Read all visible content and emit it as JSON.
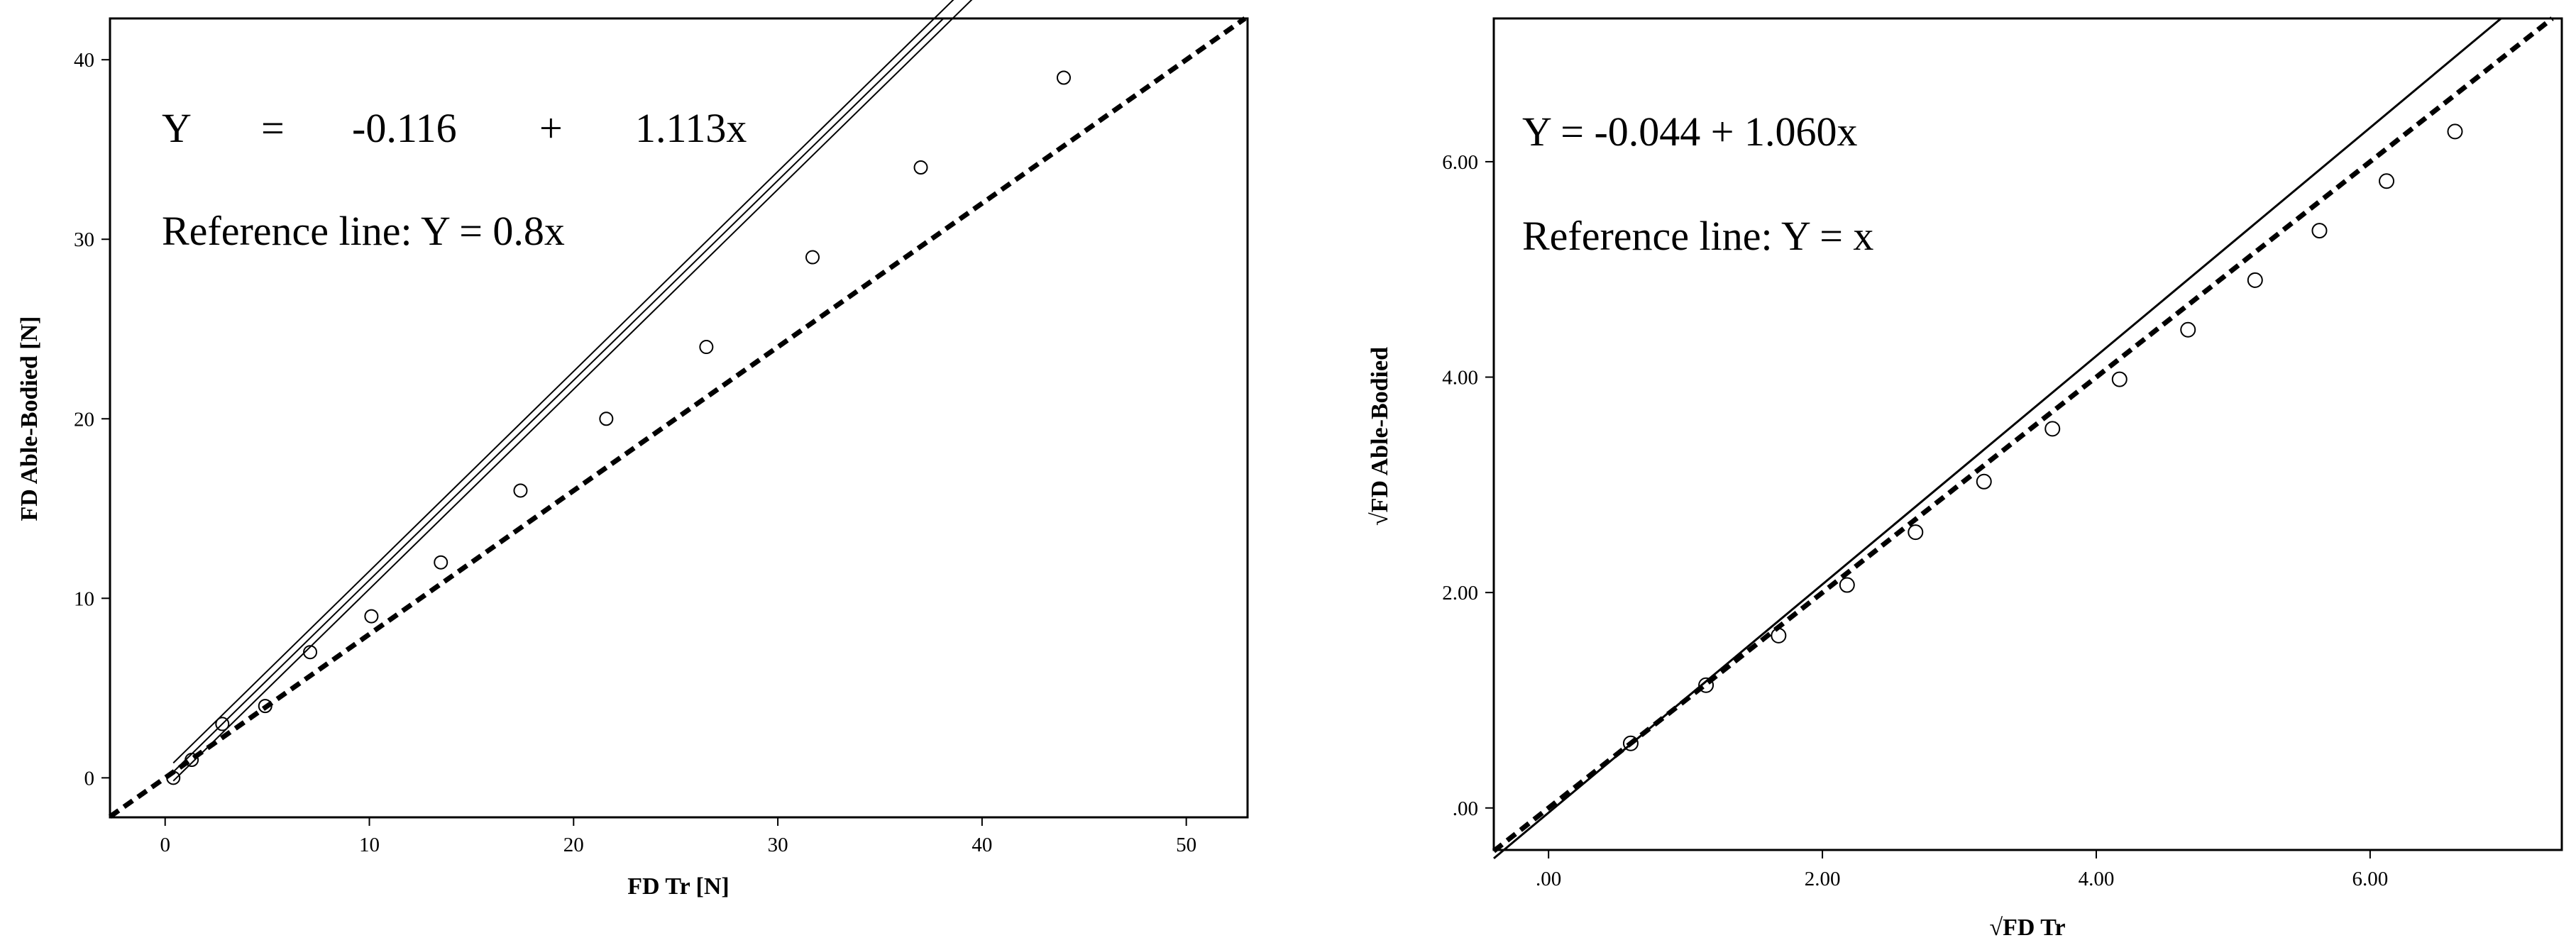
{
  "chart_data": [
    {
      "type": "scatter",
      "title": "",
      "xlabel": "FD Tr [N]",
      "ylabel": "FD Able-Bodied [N]",
      "xlim": [
        -2.7,
        53
      ],
      "ylim": [
        -2.2,
        42.3
      ],
      "xticks": [
        0,
        10,
        20,
        30,
        40,
        50
      ],
      "xtick_labels": [
        "0",
        "10",
        "20",
        "30",
        "40",
        "50"
      ],
      "yticks": [
        0,
        10,
        20,
        30,
        40
      ],
      "ytick_labels": [
        "0",
        "10",
        "20",
        "30",
        "40"
      ],
      "grid": false,
      "points": {
        "x": [
          0.4,
          1.3,
          2.8,
          4.9,
          7.1,
          10.1,
          13.5,
          17.4,
          21.6,
          26.5,
          31.7,
          37.0,
          44.0
        ],
        "y": [
          0,
          1,
          3,
          4,
          7,
          9,
          12,
          16,
          20,
          24,
          29,
          34,
          39
        ]
      },
      "fit_line": {
        "intercept": -0.116,
        "slope": 1.113,
        "x_range": [
          0.4,
          44.0
        ]
      },
      "confidence_band": {
        "offset": 0.5
      },
      "reference_line": {
        "slope": 0.8,
        "intercept": 0,
        "style": "dashed"
      },
      "annotations": {
        "equation": [
          "Y",
          "=",
          "-0.116",
          "+",
          "1.113x"
        ],
        "reference": "Reference line: Y = 0.8x"
      }
    },
    {
      "type": "scatter",
      "title": "",
      "xlabel": "√FD Tr",
      "ylabel": "√FD Able-Bodied",
      "xlim": [
        -0.4,
        7.4
      ],
      "ylim": [
        -0.39,
        7.33
      ],
      "xticks": [
        0,
        2,
        4,
        6
      ],
      "xtick_labels": [
        ".00",
        "2.00",
        "4.00",
        "6.00"
      ],
      "yticks": [
        0,
        2,
        4,
        6
      ],
      "ytick_labels": [
        ".00",
        "2.00",
        "4.00",
        "6.00"
      ],
      "grid": false,
      "points": {
        "x": [
          0.6,
          1.15,
          1.68,
          2.18,
          2.68,
          3.18,
          3.68,
          4.17,
          4.67,
          5.16,
          5.63,
          6.12,
          6.62
        ],
        "y": [
          0.6,
          1.14,
          1.6,
          2.07,
          2.56,
          3.03,
          3.52,
          3.98,
          4.44,
          4.9,
          5.36,
          5.82,
          6.28
        ]
      },
      "fit_line": {
        "intercept": -0.044,
        "slope": 1.06
      },
      "reference_line": {
        "slope": 1,
        "intercept": 0,
        "style": "dashed"
      },
      "annotations": {
        "equation": "Y = -0.044 + 1.060x",
        "reference": "Reference line: Y = x"
      }
    }
  ]
}
